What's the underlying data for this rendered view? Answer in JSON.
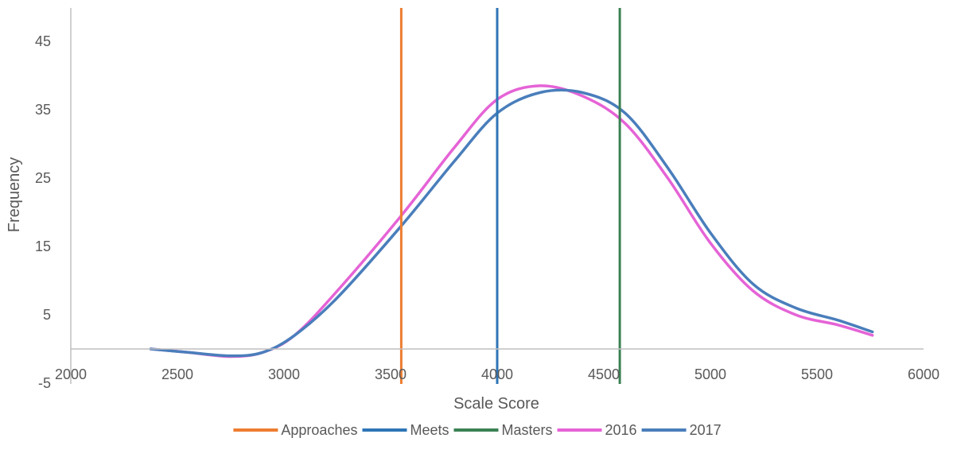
{
  "chart_data": {
    "type": "line",
    "title": "",
    "xlabel": "Scale Score",
    "ylabel": "Frequency",
    "xlim": [
      2000,
      6000
    ],
    "ylim": [
      -5,
      50
    ],
    "x_ticks": [
      2000,
      2500,
      3000,
      3500,
      4000,
      4500,
      5000,
      5500,
      6000
    ],
    "x_tick_labels": [
      "2000",
      "2500",
      "3000",
      "3500",
      "4000",
      "4500",
      "5000",
      "5500",
      "6000"
    ],
    "y_ticks": [
      -5,
      5,
      15,
      25,
      35,
      45
    ],
    "y_tick_labels": [
      "-5",
      "5",
      "15",
      "25",
      "35",
      "45"
    ],
    "grid": false,
    "legend_position": "bottom",
    "vertical_lines": [
      {
        "name": "Approaches",
        "x": 3550,
        "color": "#ED7D31"
      },
      {
        "name": "Meets",
        "x": 4000,
        "color": "#2E75B6"
      },
      {
        "name": "Masters",
        "x": 4575,
        "color": "#3B8154"
      }
    ],
    "series": [
      {
        "name": "2016",
        "color": "#E563D6",
        "x": [
          2375,
          2550,
          2750,
          2900,
          3050,
          3250,
          3550,
          3800,
          4000,
          4200,
          4400,
          4600,
          4800,
          5000,
          5200,
          5400,
          5600,
          5760
        ],
        "values": [
          0,
          -0.5,
          -1.1,
          -0.5,
          2,
          8.5,
          19.5,
          29.5,
          36.5,
          38.5,
          37,
          33,
          25,
          15.5,
          8.5,
          5,
          3.5,
          2
        ]
      },
      {
        "name": "2017",
        "color": "#4A7EBB",
        "x": [
          2375,
          2550,
          2750,
          2900,
          3050,
          3250,
          3550,
          3800,
          4000,
          4200,
          4400,
          4600,
          4800,
          5000,
          5200,
          5400,
          5600,
          5760
        ],
        "values": [
          0,
          -0.5,
          -1,
          -0.5,
          2,
          7.5,
          18,
          27.5,
          34.5,
          37.5,
          37.5,
          34.5,
          26.5,
          17,
          9.5,
          6,
          4.2,
          2.5
        ]
      }
    ]
  }
}
